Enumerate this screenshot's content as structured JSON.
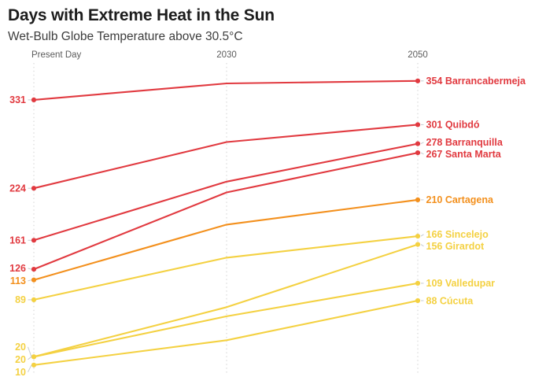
{
  "header": {
    "title": "Days with Extreme Heat in the Sun",
    "subtitle": "Wet-Bulb Globe Temperature above 30.5°C"
  },
  "chart_data": {
    "type": "line",
    "variant": "slope-chart",
    "title": "Days with Extreme Heat in the Sun",
    "subtitle": "Wet-Bulb Globe Temperature above 30.5°C",
    "x": [
      "Present Day",
      "2030",
      "2050"
    ],
    "ylim": [
      0,
      375
    ],
    "grid": "dotted vertical axis lines only",
    "legend": "none - each line labeled at right end with 2050 value and city, at left end with present-day value",
    "note": "2030 values are not labeled in the chart; estimated from line positions",
    "series": [
      {
        "name": "Barrancabermeja",
        "color": "#e13a40",
        "values": [
          331,
          351,
          354
        ]
      },
      {
        "name": "Quibdó",
        "color": "#e13a40",
        "values": [
          224,
          280,
          301
        ]
      },
      {
        "name": "Barranquilla",
        "color": "#e13a40",
        "values": [
          161,
          232,
          278
        ]
      },
      {
        "name": "Santa Marta",
        "color": "#e13a40",
        "values": [
          126,
          219,
          267
        ]
      },
      {
        "name": "Cartagena",
        "color": "#f3901d",
        "values": [
          113,
          180,
          210
        ]
      },
      {
        "name": "Sincelejo",
        "color": "#f4d142",
        "values": [
          89,
          140,
          166
        ]
      },
      {
        "name": "Girardot",
        "color": "#f4d142",
        "values": [
          20,
          80,
          156
        ]
      },
      {
        "name": "Valledupar",
        "color": "#f4d142",
        "values": [
          20,
          69,
          109
        ]
      },
      {
        "name": "Cúcuta",
        "color": "#f4d142",
        "values": [
          10,
          40,
          88
        ]
      }
    ],
    "colors": {
      "axis_line": "#d9d9d9",
      "leader": "#c7ccd1",
      "axis_label": "#5c5c5c",
      "title": "#1d1d1d",
      "subtitle": "#3d3d3d"
    }
  }
}
